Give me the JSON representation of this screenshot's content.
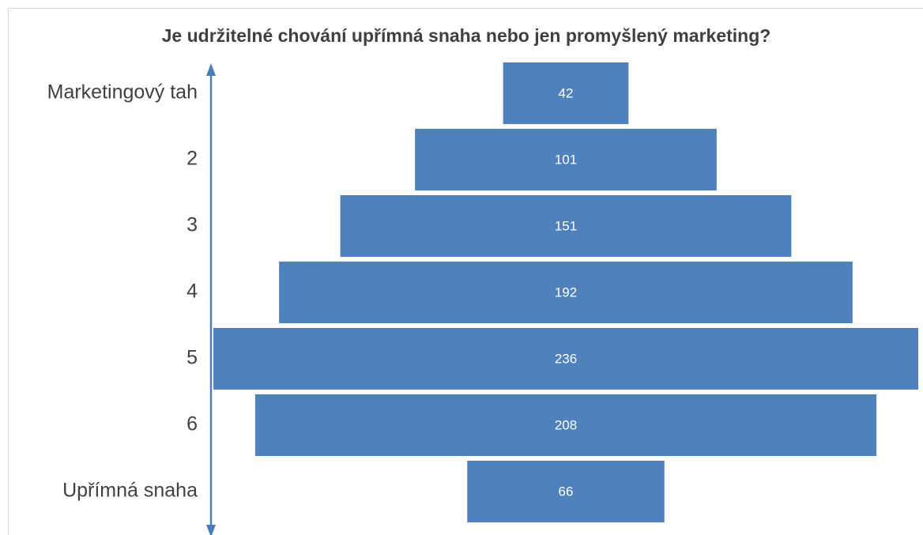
{
  "chart_data": {
    "type": "funnel",
    "title": "Je udržitelné chování upřímná snaha nebo jen promyšlený marketing?",
    "categories": [
      "Marketingový tah",
      "2",
      "3",
      "4",
      "5",
      "6",
      "Upřímná snaha"
    ],
    "values": [
      42,
      101,
      151,
      192,
      236,
      208,
      66
    ],
    "color": "#4f81bd"
  }
}
